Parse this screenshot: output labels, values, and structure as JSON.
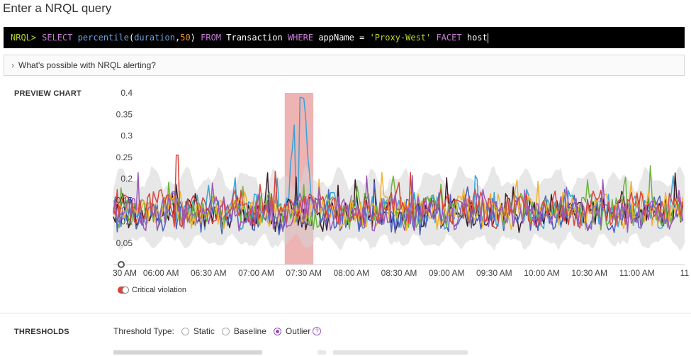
{
  "page_title": "Enter a NRQL query",
  "nrql": {
    "prompt": "NRQL>",
    "tokens": [
      {
        "text": "SELECT ",
        "color": "#c77dd5"
      },
      {
        "text": "percentile",
        "color": "#6fa3e0"
      },
      {
        "text": "(",
        "color": "#ffffff"
      },
      {
        "text": "duration",
        "color": "#6fa3e0"
      },
      {
        "text": ",",
        "color": "#ffffff"
      },
      {
        "text": "50",
        "color": "#e8913a"
      },
      {
        "text": ") ",
        "color": "#ffffff"
      },
      {
        "text": "FROM ",
        "color": "#c77dd5"
      },
      {
        "text": "Transaction ",
        "color": "#ffffff"
      },
      {
        "text": "WHERE ",
        "color": "#c77dd5"
      },
      {
        "text": "appName ",
        "color": "#ffffff"
      },
      {
        "text": "= ",
        "color": "#ffffff"
      },
      {
        "text": "'Proxy-West' ",
        "color": "#b8d630"
      },
      {
        "text": "FACET ",
        "color": "#c77dd5"
      },
      {
        "text": "host",
        "color": "#ffffff"
      }
    ]
  },
  "help_link": "What's possible with NRQL alerting?",
  "preview_label": "PREVIEW CHART",
  "chart_data": {
    "type": "line",
    "y_ticks": [
      "0.4",
      "0.35",
      "0.3",
      "0.25",
      "0.2",
      "0.15",
      "0.1",
      "0.05"
    ],
    "ylim": [
      0,
      0.4
    ],
    "x_ticks": [
      "30 AM",
      "06:00 AM",
      "06:30 AM",
      "07:00 AM",
      "07:30 AM",
      "08:00 AM",
      "08:30 AM",
      "09:00 AM",
      "09:30 AM",
      "10:00 AM",
      "10:30 AM",
      "11:00 AM",
      "11"
    ],
    "x_tick_minutes": [
      330,
      360,
      390,
      420,
      450,
      480,
      510,
      540,
      570,
      600,
      630,
      660,
      690
    ],
    "xlim_minutes": [
      330,
      690
    ],
    "violation_window_minutes": [
      438,
      456
    ],
    "band": {
      "low": 0.06,
      "high": 0.19,
      "color": "#d3d3d3"
    },
    "series": [
      {
        "color": "#3aa3d6",
        "base": 0.125,
        "spike": {
          "start": 440,
          "end": 455,
          "peak": 0.38
        }
      },
      {
        "color": "#3b1f2b",
        "base": 0.12
      },
      {
        "color": "#4a5fc1",
        "base": 0.115
      },
      {
        "color": "#6db33f",
        "base": 0.125
      },
      {
        "color": "#f2b233",
        "base": 0.125
      },
      {
        "color": "#d9453d",
        "base": 0.13,
        "spike_at": 370,
        "spike_val": 0.255
      },
      {
        "color": "#9b59b6",
        "base": 0.12
      }
    ]
  },
  "legend": {
    "critical_violation": "Critical violation",
    "color": "#d9453d"
  },
  "thresholds": {
    "label": "THRESHOLDS",
    "type_label": "Threshold Type:",
    "options": [
      "Static",
      "Baseline",
      "Outlier"
    ],
    "selected": "Outlier",
    "help": "?"
  }
}
